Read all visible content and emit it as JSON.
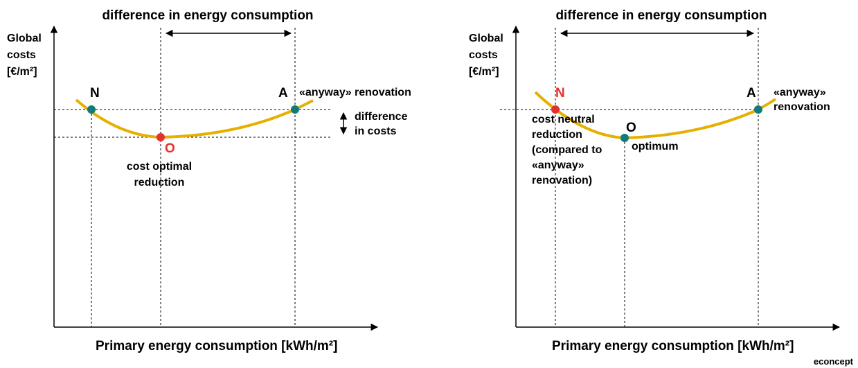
{
  "left": {
    "title": "difference in energy consumption",
    "y_label": [
      "Global",
      "costs",
      "[€/m²]"
    ],
    "x_label": "Primary energy consumption  [kWh/m²]",
    "points": {
      "N": "N",
      "O": "O",
      "A": "A"
    },
    "a_label": "«anyway» renovation",
    "o_label": [
      "cost optimal",
      "reduction"
    ],
    "cost_label": [
      "difference",
      "in costs"
    ]
  },
  "right": {
    "title": "difference in energy consumption",
    "y_label": [
      "Global",
      "costs",
      "[€/m²]"
    ],
    "x_label": "Primary energy consumption  [kWh/m²]",
    "points": {
      "N": "N",
      "O": "O",
      "A": "A"
    },
    "a_label": [
      "«anyway»",
      "renovation"
    ],
    "o_label": "optimum",
    "n_label": [
      "cost neutral",
      "reduction",
      "(compared to",
      "«anyway»",
      "renovation)"
    ]
  },
  "footer": "econcept"
}
